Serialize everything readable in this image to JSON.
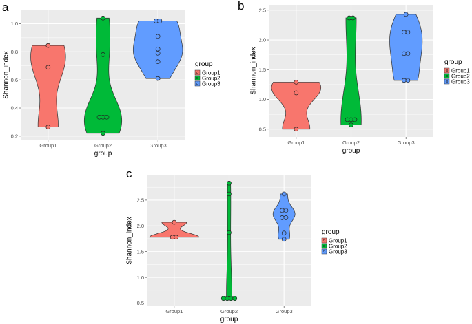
{
  "chart_data": [
    {
      "panel_label": "a",
      "type": "violin",
      "xlabel": "group",
      "ylabel": "Shannon_index",
      "categories": [
        "Group1",
        "Group2",
        "Group3"
      ],
      "ylim": [
        0.17,
        1.1
      ],
      "yticks": [
        0.2,
        0.4,
        0.6,
        0.8,
        1.0
      ],
      "ytick_labels": [
        "0.2",
        "0.4",
        "0.6",
        "0.8",
        "1.0"
      ],
      "grid": true,
      "legend": {
        "title": "group",
        "position": "right",
        "entries": [
          "Group1",
          "Group2",
          "Group3"
        ]
      },
      "series": [
        {
          "name": "Group1",
          "values": [
            0.845,
            0.69,
            0.265
          ]
        },
        {
          "name": "Group2",
          "values": [
            1.04,
            0.78,
            0.335,
            0.335,
            0.335,
            0.22
          ]
        },
        {
          "name": "Group3",
          "values": [
            1.02,
            1.02,
            0.91,
            0.82,
            0.79,
            0.73,
            0.61
          ]
        }
      ]
    },
    {
      "panel_label": "b",
      "type": "violin",
      "xlabel": "group",
      "ylabel": "Shannon_index",
      "categories": [
        "Group1",
        "Group2",
        "Group3"
      ],
      "ylim": [
        0.37,
        2.59
      ],
      "yticks": [
        0.5,
        1.0,
        1.5,
        2.0,
        2.5
      ],
      "ytick_labels": [
        "0.5",
        "1.0",
        "1.5",
        "2.0",
        "2.5"
      ],
      "grid": true,
      "legend": {
        "title": "group",
        "position": "right",
        "entries": [
          "Group1",
          "Group2",
          "Group3"
        ]
      },
      "series": [
        {
          "name": "Group1",
          "values": [
            1.29,
            1.11,
            0.5
          ]
        },
        {
          "name": "Group2",
          "values": [
            2.37,
            2.37,
            0.66,
            0.66,
            0.66,
            0.57
          ]
        },
        {
          "name": "Group3",
          "values": [
            2.43,
            2.13,
            2.13,
            1.77,
            1.77,
            1.32,
            1.32
          ]
        }
      ]
    },
    {
      "panel_label": "c",
      "type": "violin",
      "xlabel": "group",
      "ylabel": "Shannon_index",
      "categories": [
        "Group1",
        "Group2",
        "Group3"
      ],
      "ylim": [
        0.44,
        2.98
      ],
      "yticks": [
        0.5,
        1.0,
        1.5,
        2.0,
        2.5
      ],
      "ytick_labels": [
        "0.5",
        "1.0",
        "1.5",
        "2.0",
        "2.5"
      ],
      "grid": true,
      "legend": {
        "title": "group",
        "position": "right",
        "entries": [
          "Group1",
          "Group2",
          "Group3"
        ]
      },
      "series": [
        {
          "name": "Group1",
          "values": [
            2.07,
            1.78,
            1.78
          ]
        },
        {
          "name": "Group2",
          "values": [
            2.83,
            2.62,
            1.87,
            0.59,
            0.59,
            0.59,
            0.59
          ]
        },
        {
          "name": "Group3",
          "values": [
            2.62,
            2.3,
            2.3,
            2.16,
            2.16,
            1.86,
            1.74
          ]
        }
      ]
    }
  ],
  "colors": {
    "Group1": "#F8766D",
    "Group2": "#00BA38",
    "Group3": "#619CFF",
    "panel_bg": "#EBEBEB",
    "grid": "#FFFFFF"
  }
}
